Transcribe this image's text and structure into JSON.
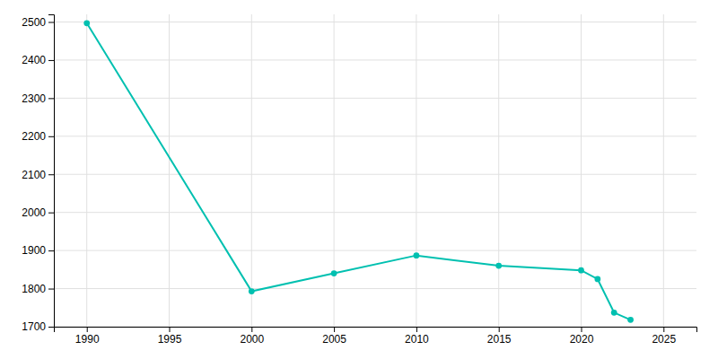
{
  "chart_data": {
    "type": "line",
    "x": [
      1990,
      2000,
      2005,
      2010,
      2015,
      2020,
      2021,
      2022,
      2023
    ],
    "values": [
      2497,
      1793,
      1840,
      1887,
      1860,
      1848,
      1825,
      1737,
      1718
    ],
    "color": "#00C0B0",
    "marker": "circle",
    "xlim": [
      1988,
      2027
    ],
    "ylim": [
      1700,
      2520
    ],
    "xticks": [
      1990,
      1995,
      2000,
      2005,
      2010,
      2015,
      2020,
      2025
    ],
    "yticks": [
      1700,
      1800,
      1900,
      2000,
      2100,
      2200,
      2300,
      2400,
      2500
    ],
    "grid": true
  }
}
